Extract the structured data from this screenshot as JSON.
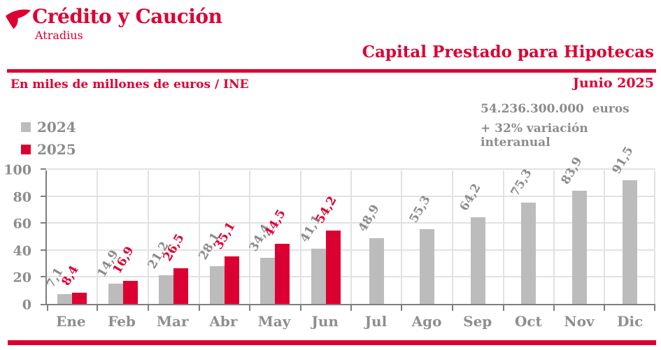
{
  "brand": {
    "name": "Crédito y Caución",
    "subtitle": "Atradius"
  },
  "header": {
    "title": "Capital Prestado para Hipotecas",
    "units_label": "En miles de millones de euros / INE",
    "date": "Junio 2025"
  },
  "stats": {
    "amount": "54.236.300.000  euros",
    "variation": "+ 32% variación interanual"
  },
  "legend": {
    "items": [
      {
        "label": "2024",
        "color": "#BCBCBC"
      },
      {
        "label": "2025",
        "color": "#DC0032"
      }
    ],
    "position": "top-left"
  },
  "colors": {
    "accent_red": "#DC0032",
    "bar_gray": "#BCBCBC",
    "text_gray": "#8C8C8C",
    "grid": "#E2E2E2",
    "axis": "#7F7F7F"
  },
  "chart_data": {
    "type": "bar",
    "title": "Capital Prestado para Hipotecas",
    "xlabel": "",
    "ylabel": "En miles de millones de euros / INE",
    "ylim": [
      0,
      100
    ],
    "yticks": [
      0,
      20,
      40,
      60,
      80,
      100
    ],
    "grid": true,
    "categories": [
      "Ene",
      "Feb",
      "Mar",
      "Abr",
      "May",
      "Jun",
      "Jul",
      "Ago",
      "Sep",
      "Oct",
      "Nov",
      "Dic"
    ],
    "series": [
      {
        "name": "2024",
        "color": "#BCBCBC",
        "label_color": "#8C8C8C",
        "values": [
          7.1,
          14.9,
          21.2,
          28.1,
          34.4,
          41.1,
          48.9,
          55.3,
          64.2,
          75.3,
          83.9,
          91.5
        ]
      },
      {
        "name": "2025",
        "color": "#DC0032",
        "label_color": "#DC0032",
        "values": [
          8.4,
          16.9,
          26.5,
          35.1,
          44.5,
          54.2,
          null,
          null,
          null,
          null,
          null,
          null
        ]
      }
    ]
  }
}
